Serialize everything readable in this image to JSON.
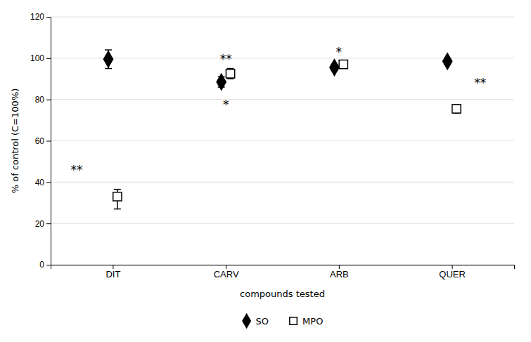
{
  "chart_data": {
    "type": "errorbar",
    "xlabel": "compounds tested",
    "ylabel": "% of control (C=100%)",
    "categories": [
      "DIT",
      "CARV",
      "ARB",
      "QUER"
    ],
    "series": [
      {
        "name": "SO",
        "color": "#000000",
        "marker": "diamond",
        "values": [
          99.5,
          88.5,
          95.5,
          98.5
        ],
        "yerr": [
          4.5,
          2.5,
          1.5,
          1.5
        ]
      },
      {
        "name": "MPO",
        "color": "#000000",
        "marker": "square-open",
        "values": [
          33.0,
          92.5,
          97.0,
          75.5
        ],
        "yerr_lower": [
          6.0,
          2.5,
          1.5,
          2.0
        ],
        "yerr_upper": [
          3.5,
          2.5,
          1.5,
          2.0
        ]
      }
    ],
    "annotations": [
      {
        "text": "**",
        "category": "DIT",
        "y": 44
      },
      {
        "text": "**",
        "category": "CARV",
        "y": 97.5
      },
      {
        "text": "*",
        "category": "CARV",
        "y": 75.5
      },
      {
        "text": "*",
        "category": "ARB",
        "y": 101
      },
      {
        "text": "**",
        "category": "QUER",
        "y": 86
      }
    ],
    "ylim": [
      0,
      120
    ],
    "yticks": [
      0,
      20,
      40,
      60,
      80,
      100,
      120
    ],
    "grid": true,
    "legend": "bottom"
  }
}
